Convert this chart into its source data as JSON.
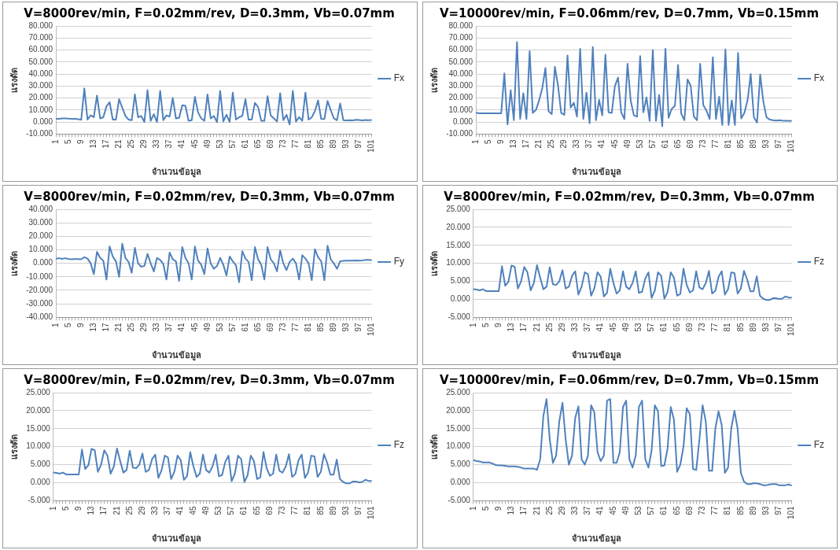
{
  "chart_data": [
    {
      "type": "line",
      "title": "V=8000rev/min, F=0.02mm/rev, D=0.3mm, Vb=0.07mm",
      "xlabel": "จำนวนข้อมูล",
      "ylabel": "แรงตัด",
      "legend": "right",
      "grid": "y",
      "marker": "none",
      "line_style": "solid",
      "categories": [
        "1",
        null,
        null,
        null,
        "5",
        null,
        null,
        null,
        "9",
        null,
        null,
        null,
        "13",
        null,
        null,
        null,
        "17",
        null,
        null,
        null,
        "21",
        null,
        null,
        null,
        "25",
        null,
        null,
        null,
        "29",
        null,
        null,
        null,
        "33",
        null,
        null,
        null,
        "37",
        null,
        null,
        null,
        "41",
        null,
        null,
        null,
        "45",
        null,
        null,
        null,
        "49",
        null,
        null,
        null,
        "53",
        null,
        null,
        null,
        "57",
        null,
        null,
        null,
        "61",
        null,
        null,
        null,
        "65",
        null,
        null,
        null,
        "69",
        null,
        null,
        null,
        "73",
        null,
        null,
        null,
        "77",
        null,
        null,
        null,
        "81",
        null,
        null,
        null,
        "85",
        null,
        null,
        null,
        "89",
        null,
        null,
        null,
        "93",
        null,
        null,
        null,
        "97",
        null,
        null,
        null,
        "101"
      ],
      "ylim": [
        -10,
        80
      ],
      "yticks": [
        {
          "value": -10,
          "label": "-10.000"
        },
        {
          "value": 0,
          "label": "0.000"
        },
        {
          "value": 10,
          "label": "10.000"
        },
        {
          "value": 20,
          "label": "20.000"
        },
        {
          "value": 30,
          "label": "30.000"
        },
        {
          "value": 40,
          "label": "40.000"
        },
        {
          "value": 50,
          "label": "50.000"
        },
        {
          "value": 60,
          "label": "60.000"
        },
        {
          "value": 70,
          "label": "70.000"
        },
        {
          "value": 80,
          "label": "80.000"
        }
      ],
      "series": [
        {
          "name": "Fx",
          "color": "#4f81bd",
          "values": [
            2.7,
            2.7,
            3.0,
            3.0,
            2.8,
            2.7,
            2.6,
            2.4,
            1.8,
            28,
            2,
            5.5,
            4,
            22,
            3,
            4,
            13,
            16.5,
            2,
            2,
            19,
            12,
            5,
            2,
            1.5,
            23,
            4,
            5,
            0,
            26.5,
            1,
            6.5,
            0,
            26,
            1.5,
            5.5,
            4.5,
            20,
            3,
            3.5,
            14,
            13.5,
            1,
            1.5,
            21,
            8,
            3,
            1,
            23,
            3,
            5,
            0,
            26,
            0.5,
            6,
            0,
            24.5,
            2,
            4,
            5,
            19,
            2,
            2,
            16,
            12.5,
            1,
            1,
            21.5,
            5.5,
            3,
            0.5,
            24,
            1.5,
            6,
            -2,
            26,
            0.5,
            4,
            1,
            24.5,
            2,
            4,
            9,
            18,
            2.5,
            2.5,
            17.5,
            10,
            3,
            1.5,
            15.5,
            1.5,
            1.4,
            1.5,
            1.3,
            1.8,
            1.7,
            1.3,
            1.6,
            1.5,
            1.7
          ]
        }
      ]
    },
    {
      "type": "line",
      "title": "V=10000rev/min, F=0.06mm/rev, D=0.7mm, Vb=0.15mm",
      "xlabel": "จำนวนข้อมูล",
      "ylabel": "แรงตัด",
      "legend": "right",
      "grid": "y",
      "marker": "none",
      "line_style": "solid",
      "categories": [
        "1",
        null,
        null,
        null,
        "5",
        null,
        null,
        null,
        "9",
        null,
        null,
        null,
        "13",
        null,
        null,
        null,
        "17",
        null,
        null,
        null,
        "21",
        null,
        null,
        null,
        "25",
        null,
        null,
        null,
        "29",
        null,
        null,
        null,
        "33",
        null,
        null,
        null,
        "37",
        null,
        null,
        null,
        "41",
        null,
        null,
        null,
        "45",
        null,
        null,
        null,
        "49",
        null,
        null,
        null,
        "53",
        null,
        null,
        null,
        "57",
        null,
        null,
        null,
        "61",
        null,
        null,
        null,
        "65",
        null,
        null,
        null,
        "69",
        null,
        null,
        null,
        "73",
        null,
        null,
        null,
        "77",
        null,
        null,
        null,
        "81",
        null,
        null,
        null,
        "85",
        null,
        null,
        null,
        "89",
        null,
        null,
        null,
        "93",
        null,
        null,
        null,
        "97",
        null,
        null,
        null,
        "101"
      ],
      "ylim": [
        -10,
        80
      ],
      "yticks": [
        {
          "value": -10,
          "label": "-10.000"
        },
        {
          "value": 0,
          "label": "0.000"
        },
        {
          "value": 10,
          "label": "10.000"
        },
        {
          "value": 20,
          "label": "20.000"
        },
        {
          "value": 30,
          "label": "30.000"
        },
        {
          "value": 40,
          "label": "40.000"
        },
        {
          "value": 50,
          "label": "50.000"
        },
        {
          "value": 60,
          "label": "60.000"
        },
        {
          "value": 70,
          "label": "70.000"
        },
        {
          "value": 80,
          "label": "80.000"
        }
      ],
      "series": [
        {
          "name": "Fx",
          "color": "#4f81bd",
          "values": [
            7.8,
            7.2,
            7.2,
            7.2,
            7.3,
            7.2,
            7.2,
            7.2,
            7.2,
            40.5,
            -2,
            26.5,
            1.5,
            66.5,
            2.5,
            24,
            2.5,
            59,
            7.5,
            10,
            18,
            28,
            45,
            9,
            6.5,
            46,
            30,
            7.5,
            6,
            55.5,
            12,
            16,
            4.5,
            61,
            2.5,
            24.5,
            -1,
            62.5,
            1.5,
            18.5,
            5.5,
            56,
            8,
            7.5,
            30,
            37,
            8,
            2.5,
            48.5,
            18,
            5.5,
            4.5,
            55,
            8,
            20.5,
            1,
            60,
            1,
            22.5,
            -3.5,
            61,
            3.5,
            11,
            13.5,
            47.5,
            7,
            1.5,
            35.5,
            30,
            4.5,
            1.5,
            48.5,
            14,
            9.5,
            2.5,
            54,
            2.5,
            21,
            -2.5,
            60.5,
            -2.5,
            18,
            -2.5,
            57.5,
            3,
            7.5,
            18,
            40,
            4,
            -0.5,
            39.5,
            17,
            4,
            2,
            1.5,
            1.2,
            1.5,
            1.2,
            1.1,
            1.1,
            0.8
          ]
        }
      ]
    },
    {
      "type": "line",
      "title": "V=8000rev/min, F=0.02mm/rev, D=0.3mm, Vb=0.07mm",
      "xlabel": "จำนวนข้อมูล",
      "ylabel": "แรงตัด",
      "legend": "right",
      "grid": "y",
      "marker": "none",
      "line_style": "solid",
      "categories": [
        "1",
        null,
        null,
        null,
        "5",
        null,
        null,
        null,
        "9",
        null,
        null,
        null,
        "13",
        null,
        null,
        null,
        "17",
        null,
        null,
        null,
        "21",
        null,
        null,
        null,
        "25",
        null,
        null,
        null,
        "29",
        null,
        null,
        null,
        "33",
        null,
        null,
        null,
        "37",
        null,
        null,
        null,
        "41",
        null,
        null,
        null,
        "45",
        null,
        null,
        null,
        "49",
        null,
        null,
        null,
        "53",
        null,
        null,
        null,
        "57",
        null,
        null,
        null,
        "61",
        null,
        null,
        null,
        "65",
        null,
        null,
        null,
        "69",
        null,
        null,
        null,
        "73",
        null,
        null,
        null,
        "77",
        null,
        null,
        null,
        "81",
        null,
        null,
        null,
        "85",
        null,
        null,
        null,
        "89",
        null,
        null,
        null,
        "93",
        null,
        null,
        null,
        "97",
        null,
        null,
        null,
        "101"
      ],
      "ylim": [
        -40,
        40
      ],
      "yticks": [
        {
          "value": -40,
          "label": "-40.000"
        },
        {
          "value": -30,
          "label": "-30.000"
        },
        {
          "value": -20,
          "label": "-20.000"
        },
        {
          "value": -10,
          "label": "-10.000"
        },
        {
          "value": 0,
          "label": "0.000"
        },
        {
          "value": 10,
          "label": "10.000"
        },
        {
          "value": 20,
          "label": "20.000"
        },
        {
          "value": 30,
          "label": "30.000"
        },
        {
          "value": 40,
          "label": "40.000"
        }
      ],
      "series": [
        {
          "name": "Fy",
          "color": "#4f81bd",
          "values": [
            3.5,
            3.8,
            3.3,
            3.8,
            3.2,
            3.0,
            3.2,
            3.2,
            3.0,
            4.5,
            3.5,
            0,
            -8,
            8.5,
            4,
            2,
            -12,
            12.5,
            5,
            1.5,
            -10,
            14.5,
            4,
            1,
            -7,
            11.5,
            0,
            -2.5,
            -2,
            7,
            0,
            -6,
            4,
            2.5,
            -0.5,
            -12,
            8,
            3,
            1.5,
            -13,
            12,
            4,
            0,
            -12,
            12.5,
            2,
            -1,
            -8,
            11,
            0,
            -4,
            -2,
            4,
            -1,
            -9,
            5,
            1.5,
            -1.5,
            -14,
            9,
            3.5,
            1,
            -12.5,
            12,
            3,
            -1,
            -12,
            12,
            3,
            0,
            -6,
            9.5,
            0,
            -5,
            1,
            3.5,
            0,
            -12,
            6,
            3.5,
            0,
            -12.5,
            10.5,
            4.5,
            1.5,
            -12.5,
            13,
            3,
            0,
            -4,
            1.5,
            1.8,
            2,
            2,
            2,
            2.2,
            2,
            2.1,
            2.5,
            2.5,
            2.3
          ]
        }
      ]
    },
    {
      "type": "line",
      "title": "V=8000rev/min, F=0.02mm/rev, D=0.3mm, Vb=0.07mm",
      "xlabel": "จำนวนข้อมูล",
      "ylabel": "แรงตัด",
      "legend": "right",
      "grid": "y",
      "marker": "none",
      "line_style": "solid",
      "categories": [
        "1",
        null,
        null,
        null,
        "5",
        null,
        null,
        null,
        "9",
        null,
        null,
        null,
        "13",
        null,
        null,
        null,
        "17",
        null,
        null,
        null,
        "21",
        null,
        null,
        null,
        "25",
        null,
        null,
        null,
        "29",
        null,
        null,
        null,
        "33",
        null,
        null,
        null,
        "37",
        null,
        null,
        null,
        "41",
        null,
        null,
        null,
        "45",
        null,
        null,
        null,
        "49",
        null,
        null,
        null,
        "53",
        null,
        null,
        null,
        "57",
        null,
        null,
        null,
        "61",
        null,
        null,
        null,
        "65",
        null,
        null,
        null,
        "69",
        null,
        null,
        null,
        "73",
        null,
        null,
        null,
        "77",
        null,
        null,
        null,
        "81",
        null,
        null,
        null,
        "85",
        null,
        null,
        null,
        "89",
        null,
        null,
        null,
        "93",
        null,
        null,
        null,
        "97",
        null,
        null,
        null,
        "101"
      ],
      "ylim": [
        -5,
        25
      ],
      "yticks": [
        {
          "value": -5,
          "label": "-5.000"
        },
        {
          "value": 0,
          "label": "0.000"
        },
        {
          "value": 5,
          "label": "5.000"
        },
        {
          "value": 10,
          "label": "10.000"
        },
        {
          "value": 15,
          "label": "15.000"
        },
        {
          "value": 20,
          "label": "20.000"
        },
        {
          "value": 25,
          "label": "25.000"
        }
      ],
      "series": [
        {
          "name": "Fz",
          "color": "#4f81bd",
          "values": [
            2.8,
            2.7,
            2.5,
            2.8,
            2.3,
            2.3,
            2.3,
            2.3,
            2.3,
            9.2,
            3.8,
            4.8,
            9.4,
            9,
            3,
            5,
            9,
            7.5,
            2.5,
            4.5,
            9.5,
            6,
            2.8,
            3.5,
            8.9,
            4.2,
            4,
            5,
            8.1,
            3,
            3.5,
            6.5,
            7.8,
            1.3,
            3.5,
            7.5,
            7,
            1,
            3,
            7.5,
            6.3,
            0.8,
            1.8,
            8.5,
            4.5,
            1.6,
            2.5,
            7.8,
            3.5,
            2.8,
            4.5,
            7.8,
            1.8,
            2.1,
            5.8,
            7.5,
            0.4,
            2.5,
            7.5,
            6.5,
            0.2,
            2,
            7.5,
            6,
            1,
            1.5,
            8.5,
            4,
            1.9,
            2.5,
            7.8,
            3.3,
            2.8,
            4.5,
            7.9,
            1.6,
            2.4,
            6.2,
            7.8,
            1.3,
            2.8,
            7.5,
            7.3,
            1.6,
            3,
            7.9,
            5.5,
            2.2,
            2.2,
            6.4,
            1,
            0.2,
            -0.2,
            -0.2,
            0.3,
            0.3,
            0.1,
            0.2,
            0.8,
            0.5,
            0.5
          ]
        }
      ]
    },
    {
      "type": "line",
      "title": "V=8000rev/min, F=0.02mm/rev, D=0.3mm, Vb=0.07mm",
      "xlabel": "จำนวนข้อมูล",
      "ylabel": "แรงตัด",
      "legend": "right",
      "grid": "y",
      "marker": "none",
      "line_style": "solid",
      "categories": [
        "1",
        null,
        null,
        null,
        "5",
        null,
        null,
        null,
        "9",
        null,
        null,
        null,
        "13",
        null,
        null,
        null,
        "17",
        null,
        null,
        null,
        "21",
        null,
        null,
        null,
        "25",
        null,
        null,
        null,
        "29",
        null,
        null,
        null,
        "33",
        null,
        null,
        null,
        "37",
        null,
        null,
        null,
        "41",
        null,
        null,
        null,
        "45",
        null,
        null,
        null,
        "49",
        null,
        null,
        null,
        "53",
        null,
        null,
        null,
        "57",
        null,
        null,
        null,
        "61",
        null,
        null,
        null,
        "65",
        null,
        null,
        null,
        "69",
        null,
        null,
        null,
        "73",
        null,
        null,
        null,
        "77",
        null,
        null,
        null,
        "81",
        null,
        null,
        null,
        "85",
        null,
        null,
        null,
        "89",
        null,
        null,
        null,
        "93",
        null,
        null,
        null,
        "97",
        null,
        null,
        null,
        "101"
      ],
      "ylim": [
        -5,
        25
      ],
      "yticks": [
        {
          "value": -5,
          "label": "-5.000"
        },
        {
          "value": 0,
          "label": "0.000"
        },
        {
          "value": 5,
          "label": "5.000"
        },
        {
          "value": 10,
          "label": "10.000"
        },
        {
          "value": 15,
          "label": "15.000"
        },
        {
          "value": 20,
          "label": "20.000"
        },
        {
          "value": 25,
          "label": "25.000"
        }
      ],
      "series": [
        {
          "name": "Fz",
          "color": "#4f81bd",
          "values": [
            2.8,
            2.7,
            2.5,
            2.8,
            2.3,
            2.3,
            2.3,
            2.3,
            2.3,
            9.2,
            3.8,
            4.8,
            9.4,
            9,
            3,
            5,
            9,
            7.5,
            2.5,
            4.5,
            9.5,
            6,
            2.8,
            3.5,
            8.9,
            4.2,
            4,
            5,
            8.1,
            3,
            3.5,
            6.5,
            7.8,
            1.3,
            3.5,
            7.5,
            7,
            1,
            3,
            7.5,
            6.3,
            0.8,
            1.8,
            8.5,
            4.5,
            1.6,
            2.5,
            7.8,
            3.5,
            2.8,
            4.5,
            7.8,
            1.8,
            2.1,
            5.8,
            7.5,
            0.4,
            2.5,
            7.5,
            6.5,
            0.2,
            2,
            7.5,
            6,
            1,
            1.5,
            8.5,
            4,
            1.9,
            2.5,
            7.8,
            3.3,
            2.8,
            4.5,
            7.9,
            1.6,
            2.4,
            6.2,
            7.8,
            1.3,
            2.8,
            7.5,
            7.3,
            1.6,
            3,
            7.9,
            5.5,
            2.2,
            2.2,
            6.4,
            1,
            0.2,
            -0.2,
            -0.2,
            0.3,
            0.3,
            0.1,
            0.2,
            0.8,
            0.5,
            0.5
          ]
        }
      ]
    },
    {
      "type": "line",
      "title": "V=10000rev/min, F=0.06mm/rev, D=0.7mm, Vb=0.15mm",
      "xlabel": "จำนวนข้อมูล",
      "ylabel": "แรงตัด",
      "legend": "right",
      "grid": "y",
      "marker": "none",
      "line_style": "solid",
      "categories": [
        "1",
        null,
        null,
        null,
        "5",
        null,
        null,
        null,
        "9",
        null,
        null,
        null,
        "13",
        null,
        null,
        null,
        "17",
        null,
        null,
        null,
        "21",
        null,
        null,
        null,
        "25",
        null,
        null,
        null,
        "29",
        null,
        null,
        null,
        "33",
        null,
        null,
        null,
        "37",
        null,
        null,
        null,
        "41",
        null,
        null,
        null,
        "45",
        null,
        null,
        null,
        "49",
        null,
        null,
        null,
        "53",
        null,
        null,
        null,
        "57",
        null,
        null,
        null,
        "61",
        null,
        null,
        null,
        "65",
        null,
        null,
        null,
        "69",
        null,
        null,
        null,
        "73",
        null,
        null,
        null,
        "77",
        null,
        null,
        null,
        "81",
        null,
        null,
        null,
        "85",
        null,
        null,
        null,
        "89",
        null,
        null,
        null,
        "93",
        null,
        null,
        null,
        "97",
        null,
        null,
        null,
        "101"
      ],
      "ylim": [
        -5,
        25
      ],
      "yticks": [
        {
          "value": -5,
          "label": "-5.000"
        },
        {
          "value": 0,
          "label": "0.000"
        },
        {
          "value": 5,
          "label": "5.000"
        },
        {
          "value": 10,
          "label": "10.000"
        },
        {
          "value": 15,
          "label": "15.000"
        },
        {
          "value": 20,
          "label": "20.000"
        },
        {
          "value": 25,
          "label": "25.000"
        }
      ],
      "series": [
        {
          "name": "Fz",
          "color": "#4f81bd",
          "values": [
            6.3,
            6.0,
            5.9,
            5.6,
            5.6,
            5.6,
            5.3,
            4.9,
            4.8,
            4.8,
            4.7,
            4.5,
            4.5,
            4.5,
            4.4,
            4.2,
            3.9,
            3.9,
            3.9,
            3.9,
            3.6,
            6.5,
            18.5,
            23.2,
            12,
            5.5,
            7.5,
            17,
            22.2,
            12,
            5,
            7.5,
            18,
            21.2,
            6.5,
            5,
            7.5,
            21.5,
            19.5,
            8.5,
            6,
            7.5,
            22.8,
            23.2,
            5.5,
            5.5,
            8.5,
            21,
            22.8,
            6.5,
            4.2,
            7.5,
            21,
            22.8,
            6.5,
            4.2,
            9,
            21.5,
            19.8,
            4.6,
            4.8,
            9.5,
            21,
            17.5,
            3,
            5,
            10,
            20.7,
            19,
            3.8,
            3.5,
            12,
            21.5,
            17,
            3.3,
            3.3,
            15,
            19.8,
            16,
            2.7,
            4.2,
            15,
            20,
            15,
            2.8,
            0.3,
            -0.4,
            -0.4,
            -0.2,
            -0.2,
            -0.4,
            -0.7,
            -0.7,
            -0.5,
            -0.4,
            -0.4,
            -0.7,
            -0.7,
            -0.7,
            -0.5,
            -0.8
          ]
        }
      ]
    }
  ]
}
